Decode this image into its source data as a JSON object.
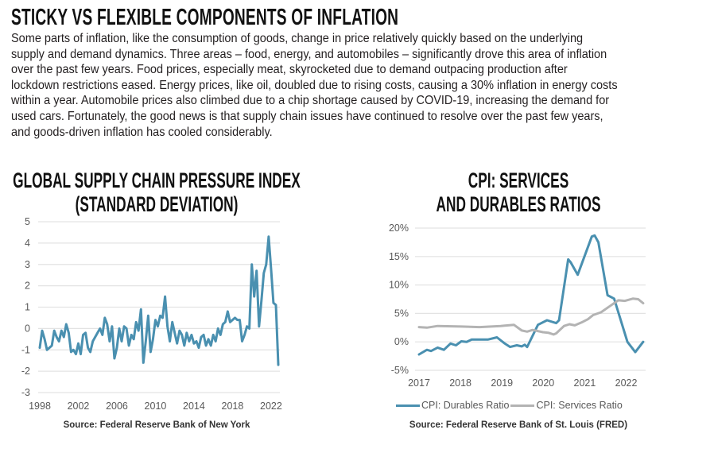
{
  "title": "STICKY VS FLEXIBLE COMPONENTS OF INFLATION",
  "paragraph_lines": [
    "Some parts of inflation, like the consumption of goods, change in price relatively quickly based on the underlying",
    "supply and demand dynamics. Three areas – food, energy, and automobiles – significantly drove this area of inflation",
    "over the past few years. Food prices, especially meat, skyrocketed due to demand outpacing production after",
    "lockdown restrictions eased. Energy prices, like oil, doubled due to rising costs, causing a 30% inflation in energy costs",
    "within a year. Automobile prices also climbed due to a chip shortage caused by COVID-19, increasing the demand for",
    "used cars. Fortunately, the good news is that supply chain issues have continued to resolve over the past few years,",
    "and goods-driven inflation has cooled considerably."
  ],
  "chart_data": [
    {
      "type": "line",
      "title_lines": [
        "GLOBAL SUPPLY CHAIN PRESSURE INDEX",
        "(STANDARD DEVIATION)"
      ],
      "source": "Source: Federal Reserve Bank of New York",
      "xlabel": "",
      "ylabel": "",
      "ylim": [
        -3,
        5
      ],
      "xlim": [
        1998,
        2022.75
      ],
      "yticks": [
        "5",
        "4",
        "3",
        "2",
        "1",
        "0",
        "-1",
        "-2",
        "-3"
      ],
      "ytick_values": [
        5,
        4,
        3,
        2,
        1,
        0,
        -1,
        -2,
        -3
      ],
      "xticks": [
        "1998",
        "2002",
        "2006",
        "2010",
        "2014",
        "2018",
        "2022"
      ],
      "xtick_values": [
        1998,
        2002,
        2006,
        2010,
        2014,
        2018,
        2022
      ],
      "grid": true,
      "color": "#4a90b0",
      "series": [
        {
          "name": "Global Supply Chain Pressure Index",
          "start": 1998,
          "step": 0.25,
          "values": [
            -0.9,
            -0.1,
            -0.5,
            -1.0,
            -0.9,
            -0.8,
            -0.1,
            -0.4,
            -0.6,
            -0.1,
            -0.4,
            0.2,
            -0.2,
            -1.1,
            -1.0,
            -1.2,
            -0.7,
            -1.2,
            -0.3,
            -0.2,
            -0.9,
            -1.1,
            -0.6,
            -0.4,
            -0.2,
            0.0,
            -0.3,
            0.5,
            0.2,
            -0.6,
            0.1,
            -1.4,
            -0.9,
            0.0,
            -0.6,
            0.1,
            0.0,
            -0.8,
            -0.3,
            -0.5,
            0.3,
            -0.1,
            0.9,
            -1.6,
            -0.6,
            0.6,
            -1.1,
            -0.5,
            0.4,
            0.1,
            0.6,
            0.5,
            1.5,
            0.1,
            -0.6,
            0.3,
            -0.2,
            -0.7,
            -0.1,
            -0.3,
            -0.8,
            -0.2,
            -0.6,
            -0.3,
            -0.7,
            -0.6,
            -0.9,
            -0.4,
            -0.3,
            -0.8,
            -0.5,
            -0.8,
            -0.3,
            -0.6,
            0.0,
            -0.3,
            0.2,
            0.3,
            0.8,
            0.3,
            0.4,
            0.5,
            0.4,
            0.4,
            -0.6,
            -0.3,
            0.1,
            0.0,
            3.0,
            1.5,
            2.7,
            0.1,
            1.3,
            2.6,
            3.0,
            4.3,
            2.8,
            1.2,
            1.1,
            -1.7
          ]
        }
      ]
    },
    {
      "type": "line",
      "title_lines": [
        "CPI: SERVICES",
        "AND DURABLES RATIOS"
      ],
      "source": "Source: Federal Reserve Bank of St. Louis (FRED)",
      "xlabel": "",
      "ylabel": "",
      "ylim": [
        -5,
        20
      ],
      "xlim": [
        2017,
        2022.45
      ],
      "yticks": [
        "20%",
        "15%",
        "10%",
        "5%",
        "0%",
        "-5%"
      ],
      "ytick_values": [
        20,
        15,
        10,
        5,
        0,
        -5
      ],
      "xticks": [
        "2017",
        "2018",
        "2019",
        "2020",
        "2021",
        "2022"
      ],
      "xtick_values": [
        2017,
        2018,
        2019,
        2020,
        2021,
        2022
      ],
      "grid": true,
      "legend_position": "bottom",
      "series": [
        {
          "name": "CPI: Durables Ratio",
          "color": "#4a90b0",
          "x": [
            2017,
            2017.19,
            2017.29,
            2017.45,
            2017.6,
            2017.76,
            2017.89,
            2018.02,
            2018.15,
            2018.27,
            2018.66,
            2018.88,
            2019.07,
            2019.2,
            2019.36,
            2019.48,
            2019.55,
            2019.61,
            2019.87,
            2020.09,
            2020.31,
            2020.38,
            2020.6,
            2020.66,
            2020.83,
            2021.17,
            2021.24,
            2021.33,
            2021.55,
            2021.71,
            2022.03,
            2022.22,
            2022.41
          ],
          "y": [
            -2.2,
            -1.4,
            -1.6,
            -1.0,
            -1.4,
            -0.3,
            -0.6,
            0.1,
            0.0,
            0.4,
            0.4,
            0.8,
            -0.3,
            -0.9,
            -0.6,
            -0.8,
            -0.5,
            -0.9,
            3.0,
            3.8,
            3.3,
            3.8,
            14.5,
            14.0,
            11.8,
            18.5,
            18.7,
            17.5,
            8.2,
            7.6,
            0.0,
            -1.8,
            0.0
          ]
        },
        {
          "name": "CPI: Services Ratio",
          "color": "#b3b3b3",
          "x": [
            2017,
            2017.19,
            2017.45,
            2018.02,
            2018.46,
            2018.97,
            2019.29,
            2019.48,
            2019.61,
            2019.74,
            2019.99,
            2020.12,
            2020.25,
            2020.31,
            2020.5,
            2020.63,
            2020.76,
            2020.95,
            2021.08,
            2021.2,
            2021.39,
            2021.59,
            2021.81,
            2021.97,
            2022.16,
            2022.29,
            2022.41
          ],
          "y": [
            2.6,
            2.5,
            2.8,
            2.7,
            2.6,
            2.8,
            3.0,
            2.0,
            1.8,
            2.1,
            1.7,
            1.6,
            1.3,
            1.5,
            2.8,
            3.1,
            2.9,
            3.5,
            4.0,
            4.7,
            5.2,
            6.2,
            7.3,
            7.2,
            7.6,
            7.5,
            6.8
          ]
        }
      ]
    }
  ]
}
